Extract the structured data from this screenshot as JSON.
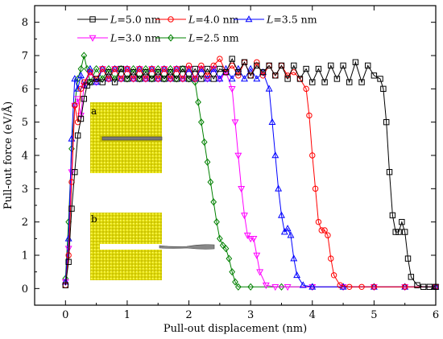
{
  "chart_data": {
    "type": "line",
    "xlabel": "Pull-out displacement (nm)",
    "ylabel": "Pull-out force (eV/Å)",
    "xlim": [
      -0.5,
      6
    ],
    "ylim": [
      -0.5,
      8.5
    ],
    "x_ticks": [
      0,
      1,
      2,
      3,
      4,
      5,
      6
    ],
    "y_ticks": [
      0,
      1,
      2,
      3,
      4,
      5,
      6,
      7,
      8
    ],
    "legend_placement": "top",
    "series": [
      {
        "name": "L=5.0 nm",
        "color": "#000000",
        "marker": "square",
        "points": [
          [
            0,
            0.1
          ],
          [
            0.05,
            0.8
          ],
          [
            0.1,
            2.4
          ],
          [
            0.15,
            3.5
          ],
          [
            0.2,
            4.6
          ],
          [
            0.25,
            5.1
          ],
          [
            0.3,
            5.7
          ],
          [
            0.35,
            6.1
          ],
          [
            0.4,
            6.2
          ],
          [
            0.5,
            6.3
          ],
          [
            0.6,
            6.2
          ],
          [
            0.7,
            6.5
          ],
          [
            0.8,
            6.2
          ],
          [
            0.9,
            6.6
          ],
          [
            1.0,
            6.3
          ],
          [
            1.1,
            6.5
          ],
          [
            1.2,
            6.3
          ],
          [
            1.3,
            6.5
          ],
          [
            1.4,
            6.3
          ],
          [
            1.5,
            6.5
          ],
          [
            1.6,
            6.3
          ],
          [
            1.7,
            6.5
          ],
          [
            1.8,
            6.3
          ],
          [
            1.9,
            6.6
          ],
          [
            2.0,
            6.3
          ],
          [
            2.1,
            6.6
          ],
          [
            2.2,
            6.3
          ],
          [
            2.3,
            6.6
          ],
          [
            2.4,
            6.3
          ],
          [
            2.5,
            6.6
          ],
          [
            2.6,
            6.5
          ],
          [
            2.7,
            6.9
          ],
          [
            2.8,
            6.5
          ],
          [
            2.9,
            6.8
          ],
          [
            3.0,
            6.4
          ],
          [
            3.1,
            6.7
          ],
          [
            3.2,
            6.5
          ],
          [
            3.3,
            6.7
          ],
          [
            3.4,
            6.4
          ],
          [
            3.5,
            6.7
          ],
          [
            3.6,
            6.3
          ],
          [
            3.7,
            6.7
          ],
          [
            3.8,
            6.3
          ],
          [
            3.9,
            6.6
          ],
          [
            4.0,
            6.2
          ],
          [
            4.1,
            6.6
          ],
          [
            4.2,
            6.2
          ],
          [
            4.3,
            6.7
          ],
          [
            4.4,
            6.3
          ],
          [
            4.5,
            6.7
          ],
          [
            4.6,
            6.2
          ],
          [
            4.7,
            6.8
          ],
          [
            4.8,
            6.2
          ],
          [
            4.9,
            6.7
          ],
          [
            5.0,
            6.4
          ],
          [
            5.1,
            6.3
          ],
          [
            5.15,
            6.0
          ],
          [
            5.2,
            5.0
          ],
          [
            5.25,
            3.5
          ],
          [
            5.3,
            2.2
          ],
          [
            5.35,
            1.7
          ],
          [
            5.4,
            1.7
          ],
          [
            5.45,
            2.0
          ],
          [
            5.5,
            1.7
          ],
          [
            5.55,
            0.9
          ],
          [
            5.6,
            0.35
          ],
          [
            5.7,
            0.1
          ],
          [
            5.8,
            0.05
          ],
          [
            5.9,
            0.05
          ],
          [
            6.0,
            0.05
          ]
        ]
      },
      {
        "name": "L=4.0 nm",
        "color": "#ff0000",
        "marker": "circle",
        "points": [
          [
            0,
            0.1
          ],
          [
            0.05,
            1.0
          ],
          [
            0.1,
            3.2
          ],
          [
            0.15,
            5.5
          ],
          [
            0.2,
            5.0
          ],
          [
            0.25,
            6.0
          ],
          [
            0.3,
            6.2
          ],
          [
            0.4,
            6.5
          ],
          [
            0.5,
            6.3
          ],
          [
            0.6,
            6.6
          ],
          [
            0.7,
            6.3
          ],
          [
            0.8,
            6.6
          ],
          [
            0.9,
            6.3
          ],
          [
            1.0,
            6.6
          ],
          [
            1.1,
            6.3
          ],
          [
            1.2,
            6.6
          ],
          [
            1.3,
            6.3
          ],
          [
            1.4,
            6.6
          ],
          [
            1.5,
            6.3
          ],
          [
            1.6,
            6.6
          ],
          [
            1.7,
            6.3
          ],
          [
            1.8,
            6.6
          ],
          [
            1.9,
            6.3
          ],
          [
            2.0,
            6.7
          ],
          [
            2.1,
            6.3
          ],
          [
            2.2,
            6.7
          ],
          [
            2.3,
            6.4
          ],
          [
            2.4,
            6.7
          ],
          [
            2.5,
            6.9
          ],
          [
            2.6,
            6.5
          ],
          [
            2.7,
            6.7
          ],
          [
            2.8,
            6.4
          ],
          [
            2.9,
            6.8
          ],
          [
            3.0,
            6.4
          ],
          [
            3.1,
            6.8
          ],
          [
            3.2,
            6.4
          ],
          [
            3.3,
            6.7
          ],
          [
            3.4,
            6.4
          ],
          [
            3.5,
            6.7
          ],
          [
            3.6,
            6.4
          ],
          [
            3.7,
            6.5
          ],
          [
            3.8,
            6.3
          ],
          [
            3.9,
            6.0
          ],
          [
            3.95,
            5.2
          ],
          [
            4.0,
            4.0
          ],
          [
            4.05,
            3.0
          ],
          [
            4.1,
            2.0
          ],
          [
            4.15,
            1.75
          ],
          [
            4.2,
            1.75
          ],
          [
            4.25,
            1.6
          ],
          [
            4.3,
            0.9
          ],
          [
            4.35,
            0.4
          ],
          [
            4.45,
            0.1
          ],
          [
            4.6,
            0.05
          ],
          [
            4.8,
            0.05
          ],
          [
            5.0,
            0.05
          ],
          [
            5.5,
            0.05
          ],
          [
            6.0,
            0.05
          ]
        ]
      },
      {
        "name": "L=3.5 nm",
        "color": "#0000ff",
        "marker": "triangle-up",
        "points": [
          [
            0,
            0.2
          ],
          [
            0.05,
            1.5
          ],
          [
            0.1,
            4.5
          ],
          [
            0.15,
            6.3
          ],
          [
            0.2,
            6.0
          ],
          [
            0.25,
            6.4
          ],
          [
            0.3,
            6.1
          ],
          [
            0.4,
            6.6
          ],
          [
            0.5,
            6.2
          ],
          [
            0.6,
            6.6
          ],
          [
            0.7,
            6.3
          ],
          [
            0.8,
            6.6
          ],
          [
            0.9,
            6.3
          ],
          [
            1.0,
            6.6
          ],
          [
            1.1,
            6.3
          ],
          [
            1.2,
            6.6
          ],
          [
            1.3,
            6.3
          ],
          [
            1.4,
            6.6
          ],
          [
            1.5,
            6.3
          ],
          [
            1.6,
            6.6
          ],
          [
            1.7,
            6.3
          ],
          [
            1.8,
            6.6
          ],
          [
            1.9,
            6.3
          ],
          [
            2.0,
            6.6
          ],
          [
            2.1,
            6.3
          ],
          [
            2.2,
            6.6
          ],
          [
            2.3,
            6.3
          ],
          [
            2.4,
            6.6
          ],
          [
            2.5,
            6.3
          ],
          [
            2.6,
            6.6
          ],
          [
            2.7,
            6.3
          ],
          [
            2.8,
            6.6
          ],
          [
            2.9,
            6.3
          ],
          [
            3.0,
            6.6
          ],
          [
            3.1,
            6.3
          ],
          [
            3.2,
            6.5
          ],
          [
            3.3,
            6.0
          ],
          [
            3.35,
            5.0
          ],
          [
            3.4,
            4.0
          ],
          [
            3.45,
            3.0
          ],
          [
            3.5,
            2.2
          ],
          [
            3.55,
            1.7
          ],
          [
            3.6,
            1.8
          ],
          [
            3.65,
            1.6
          ],
          [
            3.7,
            0.9
          ],
          [
            3.75,
            0.4
          ],
          [
            3.85,
            0.1
          ],
          [
            4.0,
            0.05
          ],
          [
            4.5,
            0.05
          ],
          [
            5.0,
            0.05
          ],
          [
            5.5,
            0.05
          ],
          [
            6.0,
            0.05
          ]
        ]
      },
      {
        "name": "L=3.0 nm",
        "color": "#ff00ff",
        "marker": "triangle-down",
        "points": [
          [
            0,
            0.2
          ],
          [
            0.05,
            1.2
          ],
          [
            0.1,
            3.5
          ],
          [
            0.15,
            5.5
          ],
          [
            0.2,
            5.7
          ],
          [
            0.25,
            5.2
          ],
          [
            0.3,
            6.1
          ],
          [
            0.4,
            6.5
          ],
          [
            0.5,
            6.2
          ],
          [
            0.6,
            6.6
          ],
          [
            0.7,
            6.3
          ],
          [
            0.8,
            6.6
          ],
          [
            0.9,
            6.3
          ],
          [
            1.0,
            6.6
          ],
          [
            1.1,
            6.3
          ],
          [
            1.2,
            6.6
          ],
          [
            1.3,
            6.3
          ],
          [
            1.4,
            6.6
          ],
          [
            1.5,
            6.3
          ],
          [
            1.6,
            6.6
          ],
          [
            1.7,
            6.3
          ],
          [
            1.8,
            6.6
          ],
          [
            1.9,
            6.3
          ],
          [
            2.0,
            6.6
          ],
          [
            2.1,
            6.3
          ],
          [
            2.2,
            6.6
          ],
          [
            2.3,
            6.3
          ],
          [
            2.4,
            6.6
          ],
          [
            2.5,
            6.3
          ],
          [
            2.6,
            6.5
          ],
          [
            2.7,
            6.0
          ],
          [
            2.75,
            5.0
          ],
          [
            2.8,
            4.0
          ],
          [
            2.85,
            3.0
          ],
          [
            2.9,
            2.2
          ],
          [
            2.95,
            1.6
          ],
          [
            3.0,
            1.5
          ],
          [
            3.05,
            1.5
          ],
          [
            3.1,
            1.0
          ],
          [
            3.15,
            0.5
          ],
          [
            3.25,
            0.1
          ],
          [
            3.4,
            0.05
          ],
          [
            3.6,
            0.05
          ],
          [
            4.0,
            0.05
          ],
          [
            4.5,
            0.05
          ],
          [
            5.0,
            0.05
          ],
          [
            5.5,
            0.05
          ],
          [
            6.0,
            0.05
          ]
        ]
      },
      {
        "name": "L=2.5 nm",
        "color": "#008000",
        "marker": "diamond",
        "points": [
          [
            0,
            0.3
          ],
          [
            0.05,
            2.0
          ],
          [
            0.1,
            4.2
          ],
          [
            0.15,
            5.5
          ],
          [
            0.2,
            6.3
          ],
          [
            0.25,
            6.6
          ],
          [
            0.3,
            7.0
          ],
          [
            0.35,
            6.6
          ],
          [
            0.4,
            6.2
          ],
          [
            0.5,
            6.6
          ],
          [
            0.6,
            6.3
          ],
          [
            0.7,
            6.6
          ],
          [
            0.8,
            6.3
          ],
          [
            0.9,
            6.6
          ],
          [
            1.0,
            6.3
          ],
          [
            1.1,
            6.6
          ],
          [
            1.2,
            6.3
          ],
          [
            1.3,
            6.6
          ],
          [
            1.4,
            6.3
          ],
          [
            1.5,
            6.6
          ],
          [
            1.6,
            6.3
          ],
          [
            1.7,
            6.6
          ],
          [
            1.8,
            6.3
          ],
          [
            1.9,
            6.6
          ],
          [
            2.0,
            6.3
          ],
          [
            2.1,
            6.2
          ],
          [
            2.15,
            5.6
          ],
          [
            2.2,
            5.0
          ],
          [
            2.25,
            4.4
          ],
          [
            2.3,
            3.8
          ],
          [
            2.35,
            3.2
          ],
          [
            2.4,
            2.6
          ],
          [
            2.45,
            2.0
          ],
          [
            2.5,
            1.5
          ],
          [
            2.55,
            1.3
          ],
          [
            2.6,
            1.2
          ],
          [
            2.65,
            0.9
          ],
          [
            2.7,
            0.5
          ],
          [
            2.75,
            0.2
          ],
          [
            2.8,
            0.05
          ],
          [
            3.0,
            0.05
          ],
          [
            3.5,
            0.05
          ],
          [
            4.0,
            0.05
          ],
          [
            4.5,
            0.05
          ],
          [
            5.0,
            0.05
          ],
          [
            5.5,
            0.05
          ],
          [
            6.0,
            0.05
          ]
        ]
      }
    ],
    "inset_labels": [
      "a",
      "b"
    ]
  }
}
